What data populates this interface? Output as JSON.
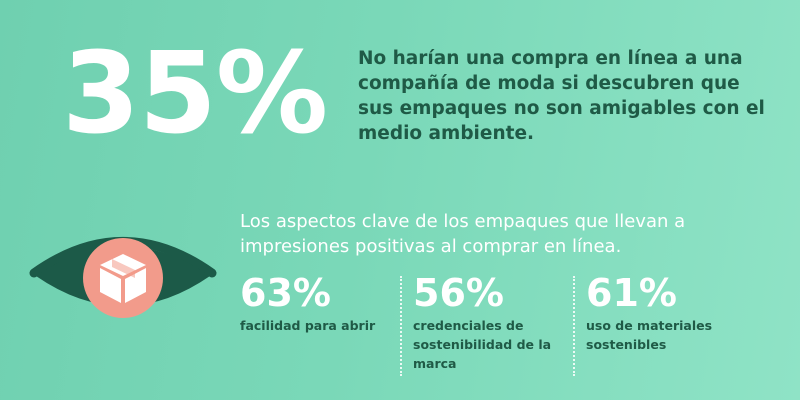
{
  "hero": {
    "percent": "35%",
    "text": "No harían una compra en línea a una compañía de moda si descubren que sus empaques no son amigables con el medio ambiente."
  },
  "subheading": "Los aspectos clave de los empaques que llevan a impresiones positivas al comprar en línea.",
  "stats": [
    {
      "value": "63%",
      "label": "facilidad para abrir"
    },
    {
      "value": "56%",
      "label": "credenciales de sostenibilidad de la marca"
    },
    {
      "value": "61%",
      "label": "uso de materiales sostenibles"
    }
  ],
  "colors": {
    "background": "#7ad8b8",
    "dark_green": "#1f5a46",
    "eye_dark": "#1c5a48",
    "iris": "#f29b8b",
    "text_white": "#ffffff"
  },
  "icons": [
    "eye-icon",
    "package-box-icon"
  ]
}
